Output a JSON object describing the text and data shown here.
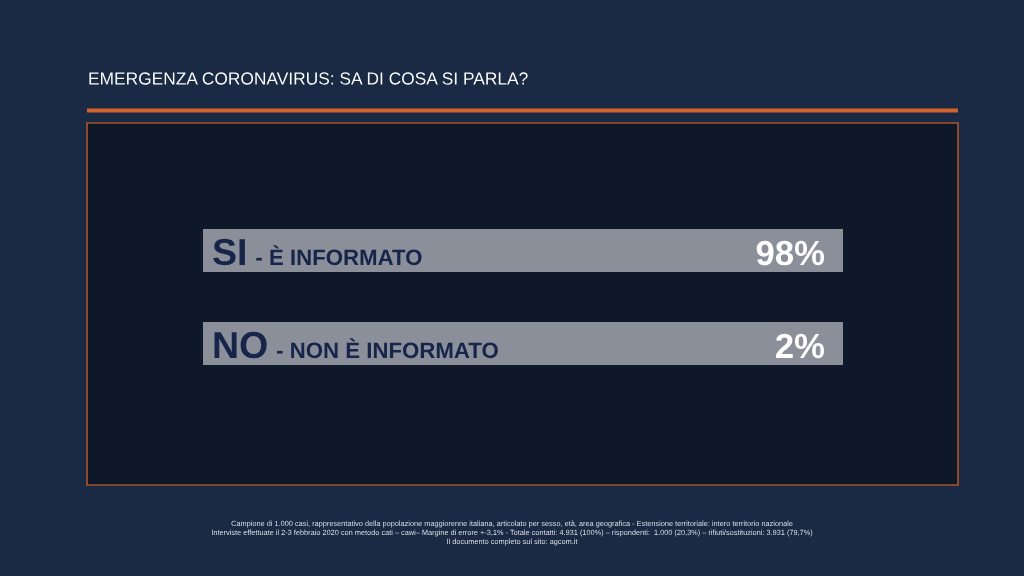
{
  "chart_data": {
    "type": "other",
    "title": "EMERGENZA CORONAVIRUS: SA DI COSA SI PARLA?",
    "categories": [
      "SI - È INFORMATO",
      "NO - NON È INFORMATO"
    ],
    "values": [
      98,
      2
    ],
    "value_labels": [
      "98%",
      "2%"
    ],
    "color": "#8b8f99",
    "annotations": [
      "Campione di 1.000 casi, rappresentativo della popolazione maggiorenne italiana, articolato per sesso, età, area geografica - Estensione territoriale: intero territorio nazionale",
      "Interviste effettuate il 2-3 febbraio 2020 con metodo cati – cawi– Margine di errore +-3,1% - Totale contatti: 4.931 (100%) – rispondenti:  1.000 (20,3%) – rifiuti/sostituzioni: 3.931 (79,7%)",
      "Il documento completo sul sito: agcom.it"
    ]
  }
}
